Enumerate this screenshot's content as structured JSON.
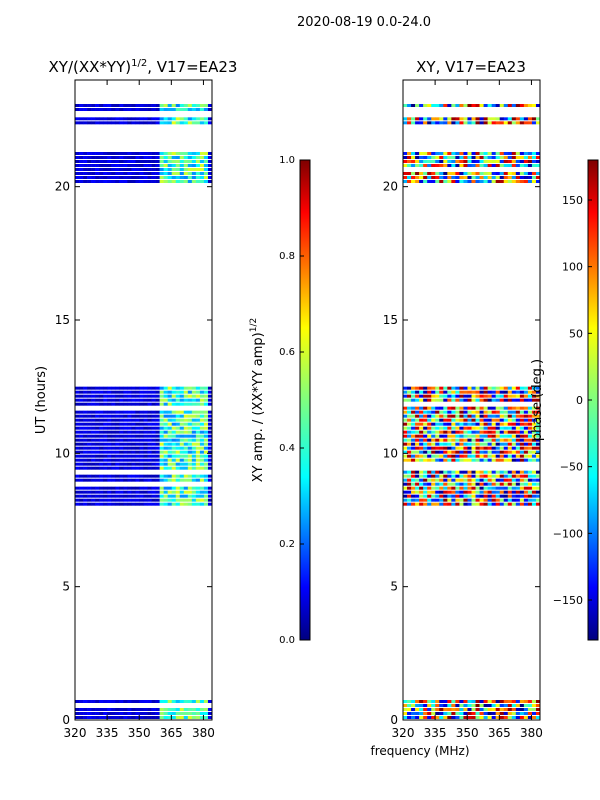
{
  "figure_title": "2020-08-19 0.0-24.0",
  "xlabel_shared": "frequency (MHz)",
  "colors": {
    "band_dark": "#000080",
    "band_mid": "#0000c8",
    "jet_stops": [
      "#00007f",
      "#0000ff",
      "#007fff",
      "#00ffff",
      "#7fff7f",
      "#ffff00",
      "#ff7f00",
      "#ff0000",
      "#7f0000"
    ]
  },
  "chart_data": [
    {
      "type": "heatmap",
      "title_main": "XY/(XX*YY)",
      "title_exp": "1/2",
      "title_suffix": ", V17=EA23",
      "ylabel": "UT (hours)",
      "xlabel": "",
      "xlim": [
        320,
        384
      ],
      "ylim": [
        0,
        24
      ],
      "xticks": [
        320,
        335,
        350,
        365,
        380
      ],
      "xtick_labels": [
        "320",
        "335",
        "350",
        "365",
        "380"
      ],
      "yticks": [
        0,
        5,
        10,
        15,
        20
      ],
      "ytick_labels": [
        "0",
        "5",
        "10",
        "15",
        "20"
      ],
      "data_hour_ranges": [
        [
          0.0,
          0.75
        ],
        [
          8.1,
          12.5
        ],
        [
          20.2,
          21.3
        ],
        [
          22.4,
          22.6
        ],
        [
          22.9,
          23.1
        ]
      ],
      "colorbar": {
        "label_main": "XY amp. / (XX*YY amp)",
        "label_exp": "1/2",
        "range": [
          0.0,
          1.0
        ],
        "ticks": [
          "0.0",
          "0.2",
          "0.4",
          "0.6",
          "0.8",
          "1.0"
        ]
      }
    },
    {
      "type": "heatmap",
      "title_main": "XY, V17=EA23",
      "ylabel": "",
      "xlabel": "frequency (MHz)",
      "xlim": [
        320,
        384
      ],
      "ylim": [
        0,
        24
      ],
      "xticks": [
        320,
        335,
        350,
        365,
        380
      ],
      "xtick_labels": [
        "320",
        "335",
        "350",
        "365",
        "380"
      ],
      "yticks": [
        0,
        5,
        10,
        15,
        20
      ],
      "ytick_labels": [
        "0",
        "5",
        "10",
        "15",
        "20"
      ],
      "data_hour_ranges": [
        [
          0.0,
          0.75
        ],
        [
          8.1,
          12.5
        ],
        [
          20.2,
          21.3
        ],
        [
          22.4,
          22.6
        ],
        [
          22.9,
          23.1
        ]
      ],
      "colorbar": {
        "label_main": "phase (deg.)",
        "range": [
          -180,
          180
        ],
        "ticks": [
          "150",
          "100",
          "50",
          "0",
          "−50",
          "−100",
          "−150"
        ]
      }
    }
  ]
}
